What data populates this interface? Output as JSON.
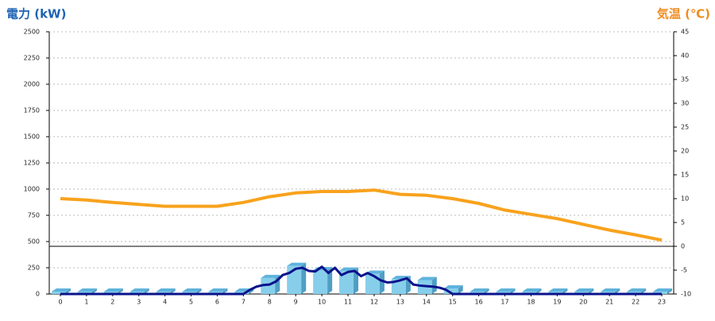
{
  "chart_data": {
    "type": "bar-line",
    "y_label": "電力 (kW)",
    "y_label_color": "#1e63b4",
    "y2_label": "気温 (℃)",
    "y2_label_color": "#f08c1e",
    "categories": [
      "0",
      "1",
      "2",
      "3",
      "4",
      "5",
      "6",
      "7",
      "8",
      "9",
      "10",
      "11",
      "12",
      "13",
      "14",
      "15",
      "16",
      "17",
      "18",
      "19",
      "20",
      "21",
      "22",
      "23"
    ],
    "ylim": [
      0,
      2500
    ],
    "yticks": [
      0,
      250,
      500,
      750,
      1000,
      1250,
      1500,
      1750,
      2000,
      2250,
      2500
    ],
    "y2lim": [
      -10,
      45
    ],
    "y2ticks": [
      -10,
      -5,
      0,
      5,
      10,
      15,
      20,
      25,
      30,
      35,
      40,
      45
    ],
    "grid": true,
    "series": [
      {
        "type": "bar",
        "color": "#87ceeb",
        "side_color": "#4f9ec4",
        "values": [
          0,
          0,
          0,
          0,
          0,
          0,
          0,
          0,
          130,
          245,
          205,
          200,
          170,
          120,
          110,
          30,
          0,
          0,
          0,
          0,
          0,
          0,
          0,
          0
        ]
      },
      {
        "type": "line",
        "axis": "y2",
        "color": "#f8a21c",
        "values": [
          10,
          9.7,
          9.2,
          8.8,
          8.4,
          8.4,
          8.4,
          9.2,
          10.4,
          11.2,
          11.5,
          11.5,
          11.8,
          10.9,
          10.7,
          10,
          9,
          7.6,
          6.7,
          5.8,
          4.6,
          3.4,
          2.4,
          1.3
        ]
      },
      {
        "type": "line",
        "color": "#0a128c",
        "x": [
          0,
          7,
          7.25,
          7.5,
          7.75,
          8,
          8.25,
          8.5,
          8.75,
          9,
          9.25,
          9.5,
          9.75,
          10,
          10.25,
          10.5,
          10.75,
          11,
          11.25,
          11.5,
          11.75,
          12,
          12.25,
          12.5,
          12.75,
          13,
          13.25,
          13.5,
          13.75,
          14,
          14.25,
          14.5,
          14.75,
          15,
          23
        ],
        "values": [
          0,
          0,
          40,
          70,
          85,
          90,
          120,
          180,
          200,
          240,
          250,
          220,
          215,
          260,
          200,
          250,
          180,
          210,
          220,
          170,
          200,
          170,
          130,
          110,
          115,
          130,
          150,
          90,
          80,
          75,
          70,
          60,
          40,
          0,
          0
        ]
      }
    ]
  }
}
